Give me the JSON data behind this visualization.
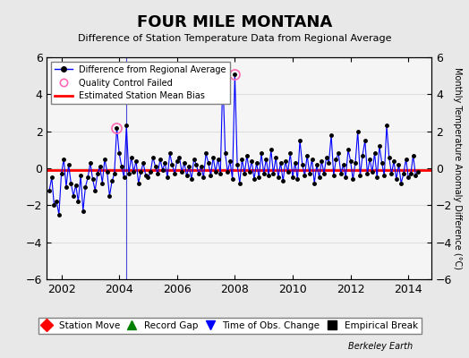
{
  "title": "FOUR MILE MONTANA",
  "subtitle": "Difference of Station Temperature Data from Regional Average",
  "ylabel": "Monthly Temperature Anomaly Difference (°C)",
  "xlabel_bottom": "Berkeley Earth",
  "xlim": [
    2001.5,
    2014.8
  ],
  "ylim": [
    -6,
    6
  ],
  "yticks": [
    -6,
    -4,
    -2,
    0,
    2,
    4,
    6
  ],
  "xticks": [
    2002,
    2004,
    2006,
    2008,
    2010,
    2012,
    2014
  ],
  "bias_line_y": -0.1,
  "line_color": "#0000ff",
  "marker_color": "#000000",
  "bias_color": "#ff0000",
  "qc_color": "#ff69b4",
  "background_color": "#e8e8e8",
  "plot_bg_color": "#f5f5f5",
  "time_obs_change_x": 2004.25,
  "legend1_items": [
    {
      "label": "Difference from Regional Average",
      "color": "#0000ff",
      "marker": "o",
      "markercolor": "#000000",
      "linestyle": "-"
    },
    {
      "label": "Quality Control Failed",
      "color": "#ff69b4",
      "marker": "o",
      "markercolor": "#ff69b4",
      "linestyle": "none"
    },
    {
      "label": "Estimated Station Mean Bias",
      "color": "#ff0000",
      "marker": "none",
      "markercolor": "none",
      "linestyle": "-"
    }
  ],
  "legend2_items": [
    {
      "label": "Station Move",
      "color": "#ff0000",
      "marker": "D",
      "markersize": 7
    },
    {
      "label": "Record Gap",
      "color": "#008000",
      "marker": "^",
      "markersize": 7
    },
    {
      "label": "Time of Obs. Change",
      "color": "#0000ff",
      "marker": "v",
      "markersize": 7
    },
    {
      "label": "Empirical Break",
      "color": "#000000",
      "marker": "s",
      "markersize": 7
    }
  ],
  "data_x": [
    2001.583,
    2001.667,
    2001.75,
    2001.833,
    2001.917,
    2002.0,
    2002.083,
    2002.167,
    2002.25,
    2002.333,
    2002.417,
    2002.5,
    2002.583,
    2002.667,
    2002.75,
    2002.833,
    2002.917,
    2003.0,
    2003.083,
    2003.167,
    2003.25,
    2003.333,
    2003.417,
    2003.5,
    2003.583,
    2003.667,
    2003.75,
    2003.833,
    2003.917,
    2004.0,
    2004.083,
    2004.167,
    2004.25,
    2004.333,
    2004.417,
    2004.5,
    2004.583,
    2004.667,
    2004.75,
    2004.833,
    2004.917,
    2005.0,
    2005.083,
    2005.167,
    2005.25,
    2005.333,
    2005.417,
    2005.5,
    2005.583,
    2005.667,
    2005.75,
    2005.833,
    2005.917,
    2006.0,
    2006.083,
    2006.167,
    2006.25,
    2006.333,
    2006.417,
    2006.5,
    2006.583,
    2006.667,
    2006.75,
    2006.833,
    2006.917,
    2007.0,
    2007.083,
    2007.167,
    2007.25,
    2007.333,
    2007.417,
    2007.5,
    2007.583,
    2007.667,
    2007.75,
    2007.833,
    2007.917,
    2008.0,
    2008.083,
    2008.167,
    2008.25,
    2008.333,
    2008.417,
    2008.5,
    2008.583,
    2008.667,
    2008.75,
    2008.833,
    2008.917,
    2009.0,
    2009.083,
    2009.167,
    2009.25,
    2009.333,
    2009.417,
    2009.5,
    2009.583,
    2009.667,
    2009.75,
    2009.833,
    2009.917,
    2010.0,
    2010.083,
    2010.167,
    2010.25,
    2010.333,
    2010.417,
    2010.5,
    2010.583,
    2010.667,
    2010.75,
    2010.833,
    2010.917,
    2011.0,
    2011.083,
    2011.167,
    2011.25,
    2011.333,
    2011.417,
    2011.5,
    2011.583,
    2011.667,
    2011.75,
    2011.833,
    2011.917,
    2012.0,
    2012.083,
    2012.167,
    2012.25,
    2012.333,
    2012.417,
    2012.5,
    2012.583,
    2012.667,
    2012.75,
    2012.833,
    2012.917,
    2013.0,
    2013.083,
    2013.167,
    2013.25,
    2013.333,
    2013.417,
    2013.5,
    2013.583,
    2013.667,
    2013.75,
    2013.833,
    2013.917,
    2014.0,
    2014.083,
    2014.167,
    2014.25,
    2014.333
  ],
  "data_y": [
    -1.2,
    -0.5,
    -2.0,
    -1.8,
    -2.5,
    -0.3,
    0.5,
    -1.0,
    0.2,
    -0.8,
    -1.5,
    -0.9,
    -1.8,
    -0.4,
    -2.3,
    -1.0,
    -0.5,
    0.3,
    -0.6,
    -1.2,
    -0.3,
    0.1,
    -0.8,
    0.5,
    -0.2,
    -1.5,
    -0.7,
    -0.3,
    2.2,
    0.8,
    0.1,
    -0.5,
    2.3,
    -0.3,
    0.6,
    -0.2,
    0.4,
    -0.8,
    -0.2,
    0.3,
    -0.4,
    -0.5,
    -0.2,
    0.6,
    0.1,
    -0.3,
    0.5,
    -0.1,
    0.3,
    -0.5,
    0.8,
    0.2,
    -0.3,
    0.4,
    0.6,
    -0.2,
    0.3,
    -0.4,
    0.1,
    -0.6,
    0.5,
    0.2,
    -0.3,
    0.1,
    -0.5,
    0.8,
    0.3,
    -0.4,
    0.6,
    -0.2,
    0.5,
    -0.3,
    5.0,
    0.8,
    -0.2,
    0.4,
    -0.6,
    5.1,
    0.2,
    -0.8,
    0.5,
    -0.3,
    0.7,
    -0.2,
    0.4,
    -0.6,
    0.3,
    -0.5,
    0.8,
    -0.3,
    0.5,
    -0.4,
    1.0,
    -0.3,
    0.6,
    -0.5,
    0.3,
    -0.7,
    0.4,
    -0.2,
    0.8,
    -0.5,
    0.3,
    -0.6,
    1.5,
    0.2,
    -0.4,
    0.7,
    -0.3,
    0.5,
    -0.8,
    0.2,
    -0.5,
    0.4,
    -0.3,
    0.6,
    0.3,
    1.8,
    -0.4,
    0.5,
    0.8,
    -0.3,
    0.2,
    -0.5,
    1.0,
    0.4,
    -0.6,
    0.3,
    2.0,
    -0.4,
    0.7,
    1.5,
    -0.3,
    0.5,
    -0.2,
    0.8,
    -0.5,
    1.2,
    0.3,
    -0.4,
    2.3,
    0.6,
    -0.3,
    0.4,
    -0.6,
    0.2,
    -0.8,
    -0.3,
    0.5,
    -0.5,
    -0.3,
    0.7,
    -0.4,
    -0.2
  ],
  "qc_failed_indices": [
    28,
    72,
    77
  ],
  "time_obs_change_x_val": 2004.25
}
